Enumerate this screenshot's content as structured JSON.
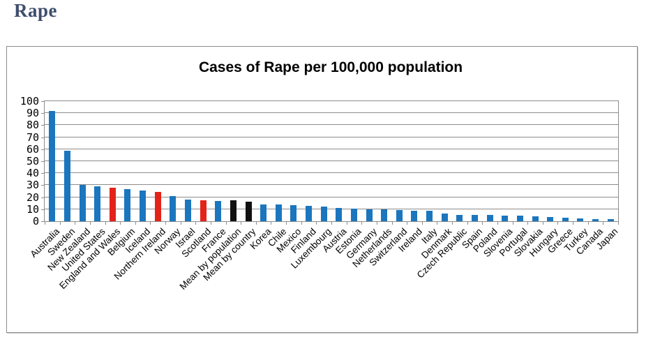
{
  "page": {
    "heading": "Rape"
  },
  "chart_data": {
    "type": "bar",
    "title": "Cases of Rape per 100,000 population",
    "xlabel": "",
    "ylabel": "",
    "ylim": [
      0,
      100
    ],
    "ytick_step": 10,
    "ytick_labels": [
      "0",
      "10",
      "20",
      "30",
      "40",
      "50",
      "60",
      "70",
      "80",
      "90",
      "100"
    ],
    "grid": true,
    "legend": "none",
    "categories": [
      "Australia",
      "Sweden",
      "New Zealand",
      "United States",
      "England and Wales",
      "Belgium",
      "Iceland",
      "Northern Ireland",
      "Norway",
      "Israel",
      "Scotland",
      "France",
      "Mean by population",
      "Mean by country",
      "Korea",
      "Chile",
      "Mexico",
      "Finland",
      "Luxembourg",
      "Austria",
      "Estonia",
      "Germany",
      "Netherlands",
      "Switzerland",
      "Ireland",
      "Italy",
      "Denmark",
      "Czech Republic",
      "Spain",
      "Poland",
      "Slovenia",
      "Portugal",
      "Slovakia",
      "Hungary",
      "Greece",
      "Turkey",
      "Canada",
      "Japan"
    ],
    "values": [
      92,
      59,
      30.5,
      29,
      28,
      27,
      25.5,
      24.5,
      21,
      18,
      17.5,
      17,
      17.5,
      16,
      14,
      14,
      13.5,
      13,
      12.5,
      11,
      10.5,
      10,
      10,
      9.5,
      9,
      8.5,
      6.5,
      5.5,
      5,
      5,
      4.5,
      4.5,
      4,
      3.5,
      3,
      2.5,
      2,
      1.5
    ],
    "bar_colors": [
      "#1b76be",
      "#1b76be",
      "#1b76be",
      "#1b76be",
      "#e3231a",
      "#1b76be",
      "#1b76be",
      "#e3231a",
      "#1b76be",
      "#1b76be",
      "#e3231a",
      "#1b76be",
      "#111111",
      "#111111",
      "#1b76be",
      "#1b76be",
      "#1b76be",
      "#1b76be",
      "#1b76be",
      "#1b76be",
      "#1b76be",
      "#1b76be",
      "#1b76be",
      "#1b76be",
      "#1b76be",
      "#1b76be",
      "#1b76be",
      "#1b76be",
      "#1b76be",
      "#1b76be",
      "#1b76be",
      "#1b76be",
      "#1b76be",
      "#1b76be",
      "#1b76be",
      "#1b76be",
      "#1b76be",
      "#1b76be"
    ],
    "colors": {
      "default_bar": "#1b76be",
      "uk_highlight": "#e3231a",
      "mean_highlight": "#111111",
      "gridline": "#8c8c8c",
      "heading_text": "#3f4e6d"
    }
  }
}
